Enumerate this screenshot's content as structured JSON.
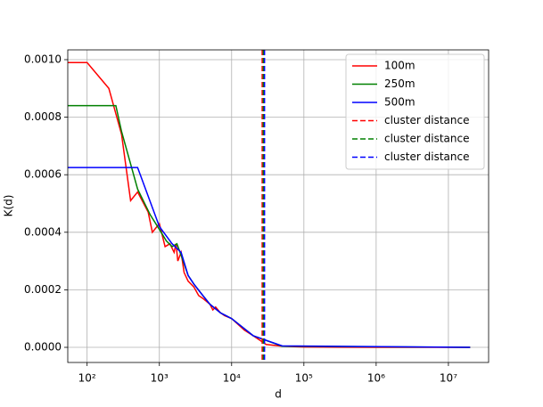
{
  "chart_data": {
    "type": "line",
    "xlabel": "d",
    "ylabel": "K(d)",
    "xscale": "log",
    "grid": true,
    "legend": "upper right",
    "xlim": [
      54,
      36000000
    ],
    "xticks": [
      {
        "value": 100,
        "label": "10²"
      },
      {
        "value": 1000,
        "label": "10³"
      },
      {
        "value": 10000,
        "label": "10⁴"
      },
      {
        "value": 100000,
        "label": "10⁵"
      },
      {
        "value": 1000000,
        "label": "10⁶"
      },
      {
        "value": 10000000,
        "label": "10⁷"
      }
    ],
    "ylim": [
      -5.26e-05,
      0.001034
    ],
    "yticks": [
      {
        "value": 0,
        "label": "0.0000"
      },
      {
        "value": 0.0002,
        "label": "0.0002"
      },
      {
        "value": 0.0004,
        "label": "0.0004"
      },
      {
        "value": 0.0006,
        "label": "0.0006"
      },
      {
        "value": 0.0008,
        "label": "0.0008"
      },
      {
        "value": 0.001,
        "label": "0.0010"
      }
    ],
    "series": [
      {
        "name": "100m",
        "color": "#ff0000",
        "style": "solid",
        "x": [
          50,
          100,
          200,
          300,
          400,
          500,
          700,
          800,
          1000,
          1200,
          1400,
          1600,
          1700,
          1800,
          2000,
          2200,
          2500,
          3000,
          3500,
          4000,
          5000,
          5500,
          6000,
          7000,
          8000,
          10000,
          15000,
          20000,
          30000,
          50000,
          100000,
          1000000,
          20000000
        ],
        "values": [
          0.00099,
          0.00099,
          0.0009,
          0.00074,
          0.00051,
          0.00054,
          0.00047,
          0.0004,
          0.00043,
          0.00035,
          0.00036,
          0.00033,
          0.00036,
          0.0003,
          0.00033,
          0.00026,
          0.00023,
          0.00021,
          0.00018,
          0.00017,
          0.00015,
          0.00013,
          0.00014,
          0.00012,
          0.00011,
          0.0001,
          6e-05,
          4e-05,
          1e-05,
          4e-06,
          1e-06,
          0,
          0
        ]
      },
      {
        "name": "250m",
        "color": "#008000",
        "style": "solid",
        "x": [
          50,
          250,
          300,
          500,
          750,
          1000,
          1250,
          1500,
          1750,
          2000,
          2500,
          3000,
          4000,
          5000,
          7000,
          10000,
          20000,
          50000,
          20000000
        ],
        "values": [
          0.00084,
          0.00084,
          0.00075,
          0.00055,
          0.00046,
          0.00041,
          0.00037,
          0.00035,
          0.00036,
          0.00032,
          0.00025,
          0.00022,
          0.00018,
          0.00015,
          0.00012,
          0.0001,
          4e-05,
          4e-06,
          0
        ]
      },
      {
        "name": "500m",
        "color": "#0000ff",
        "style": "solid",
        "x": [
          50,
          500,
          1000,
          1500,
          2000,
          2500,
          3000,
          4000,
          5000,
          7000,
          10000,
          20000,
          50000,
          20000000
        ],
        "values": [
          0.000625,
          0.000625,
          0.00042,
          0.00036,
          0.00033,
          0.00025,
          0.00022,
          0.00018,
          0.00015,
          0.00012,
          0.0001,
          4e-05,
          5e-06,
          0
        ]
      }
    ],
    "vlines": [
      {
        "name": "cluster distance",
        "color": "#ff0000",
        "style": "dashed",
        "x": 26500
      },
      {
        "name": "cluster distance",
        "color": "#008000",
        "style": "dashed",
        "x": 27500
      },
      {
        "name": "cluster distance",
        "color": "#0000ff",
        "style": "dashed",
        "x": 28500
      }
    ]
  }
}
